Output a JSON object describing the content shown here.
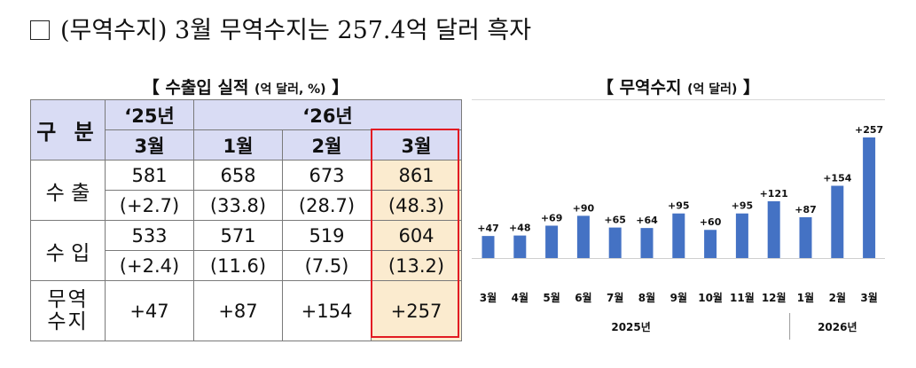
{
  "headline": "(무역수지) 3월 무역수지는 257.4억 달러 흑자",
  "table": {
    "title_main": "【 수출입 실적 ",
    "title_unit": "(억 달러, %)",
    "title_end": " 】",
    "gubun_label": "구 분",
    "year_25": "‘25년",
    "year_26": "‘26년",
    "months": [
      "3월",
      "1월",
      "2월",
      "3월"
    ],
    "rows": {
      "export": {
        "label": "수 출",
        "values": [
          "581",
          "658",
          "673",
          "861"
        ],
        "pcts": [
          "(+2.7)",
          "(33.8)",
          "(28.7)",
          "(48.3)"
        ]
      },
      "import": {
        "label": "수 입",
        "values": [
          "533",
          "571",
          "519",
          "604"
        ],
        "pcts": [
          "(+2.4)",
          "(11.6)",
          "(7.5)",
          "(13.2)"
        ]
      },
      "balance": {
        "label_line1": "무역",
        "label_line2": "수지",
        "values": [
          "+47",
          "+87",
          "+154",
          "+257"
        ]
      }
    },
    "highlight_color": "#e21b23",
    "highlight_fill": "#fbebcf",
    "header_fill": "#d9dcf4"
  },
  "chart_title": {
    "main": "【 무역수지 ",
    "unit": "(억 달러)",
    "end": " 】"
  },
  "chart_data": {
    "type": "bar",
    "categories": [
      "3월",
      "4월",
      "5월",
      "6월",
      "7월",
      "8월",
      "9월",
      "10월",
      "11월",
      "12월",
      "1월",
      "2월",
      "3월"
    ],
    "values": [
      47,
      48,
      69,
      90,
      65,
      64,
      95,
      60,
      95,
      121,
      87,
      154,
      257
    ],
    "labels": [
      "+47",
      "+48",
      "+69",
      "+90",
      "+65",
      "+64",
      "+95",
      "+60",
      "+95",
      "+121",
      "+87",
      "+154",
      "+257"
    ],
    "groups": [
      {
        "label": "2025년",
        "start": 0,
        "end": 9
      },
      {
        "label": "2026년",
        "start": 10,
        "end": 12
      }
    ],
    "bar_color": "#4472c4",
    "ylim": [
      0,
      257
    ]
  }
}
